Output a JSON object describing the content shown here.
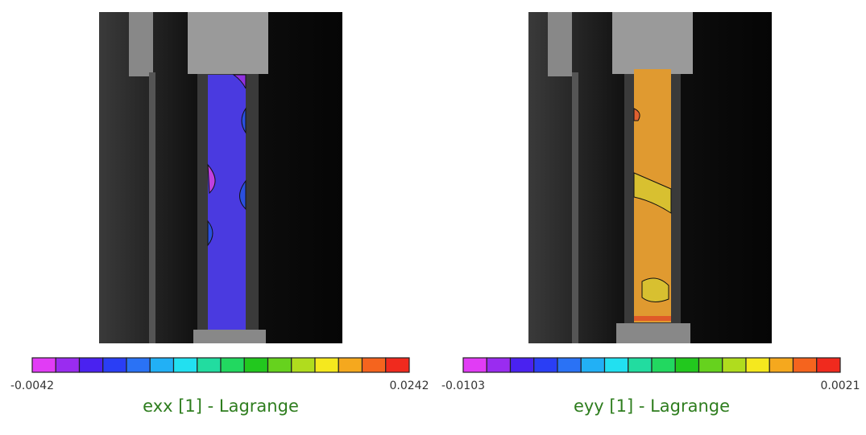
{
  "panels": [
    {
      "label": "exx [1] - Lagrange",
      "min_label": "-0.0042",
      "max_label": "0.0242"
    },
    {
      "label": "eyy [1] - Lagrange",
      "min_label": "-0.0103",
      "max_label": "0.0021"
    }
  ],
  "colorbar_colors": [
    "#e13cf5",
    "#9a2cf0",
    "#4a22f0",
    "#2a3ef5",
    "#2a72f5",
    "#22b0f5",
    "#22e0f0",
    "#22dca0",
    "#22d860",
    "#22c81e",
    "#66d21e",
    "#b0dc1e",
    "#f5e81e",
    "#f5a81e",
    "#f5641e",
    "#f02a1e"
  ]
}
